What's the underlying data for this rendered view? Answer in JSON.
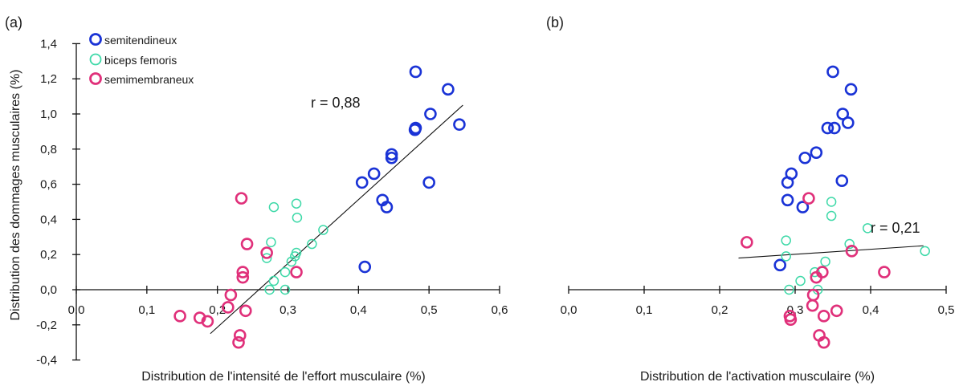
{
  "colors": {
    "semitendineux": "#1a33d6",
    "biceps_femoris": "#3ed9a8",
    "semimembraneux": "#e0307a",
    "axis": "#111111"
  },
  "chart_data": [
    {
      "type": "scatter",
      "panel_label": "(a)",
      "xlabel": "Distribution de l'intensité de l'effort musculaire (%)",
      "ylabel": "Distribution des dommages musculaires (%)",
      "xlim": [
        0,
        0.6
      ],
      "ylim": [
        -0.4,
        1.4
      ],
      "x_ticks": [
        {
          "v": 0.0,
          "label": "0,0"
        },
        {
          "v": 0.1,
          "label": "0,1"
        },
        {
          "v": 0.2,
          "label": "0,2"
        },
        {
          "v": 0.3,
          "label": "0,3"
        },
        {
          "v": 0.4,
          "label": "0,4"
        },
        {
          "v": 0.5,
          "label": "0,5"
        },
        {
          "v": 0.6,
          "label": "0,6"
        }
      ],
      "y_ticks": [
        {
          "v": -0.4,
          "label": "-0,4"
        },
        {
          "v": -0.2,
          "label": "-0,2"
        },
        {
          "v": 0.0,
          "label": "0,0"
        },
        {
          "v": 0.2,
          "label": "0,2"
        },
        {
          "v": 0.4,
          "label": "0,4"
        },
        {
          "v": 0.6,
          "label": "0,6"
        },
        {
          "v": 0.8,
          "label": "0,8"
        },
        {
          "v": 1.0,
          "label": "1,0"
        },
        {
          "v": 1.2,
          "label": "1,2"
        },
        {
          "v": 1.4,
          "label": "1,4"
        }
      ],
      "legend": {
        "position": "top-left",
        "entries": [
          "semitendineux",
          "biceps femoris",
          "semimembraneux"
        ]
      },
      "annotation": "r = 0,88",
      "trendline": {
        "x": [
          0.19,
          0.548
        ],
        "y": [
          -0.25,
          1.05
        ]
      },
      "series": [
        {
          "name": "semitendineux",
          "color_key": "semitendineux",
          "points": [
            [
              0.409,
              0.13
            ],
            [
              0.405,
              0.61
            ],
            [
              0.422,
              0.66
            ],
            [
              0.434,
              0.51
            ],
            [
              0.44,
              0.47
            ],
            [
              0.447,
              0.75
            ],
            [
              0.447,
              0.77
            ],
            [
              0.48,
              0.91
            ],
            [
              0.481,
              0.92
            ],
            [
              0.481,
              1.24
            ],
            [
              0.5,
              0.61
            ],
            [
              0.502,
              1.0
            ],
            [
              0.527,
              1.14
            ],
            [
              0.543,
              0.94
            ]
          ]
        },
        {
          "name": "biceps femoris",
          "color_key": "biceps_femoris",
          "points": [
            [
              0.27,
              0.18
            ],
            [
              0.274,
              0.0
            ],
            [
              0.276,
              0.27
            ],
            [
              0.28,
              0.05
            ],
            [
              0.28,
              0.47
            ],
            [
              0.296,
              0.0
            ],
            [
              0.296,
              0.1
            ],
            [
              0.305,
              0.16
            ],
            [
              0.31,
              0.19
            ],
            [
              0.312,
              0.21
            ],
            [
              0.312,
              0.49
            ],
            [
              0.313,
              0.41
            ],
            [
              0.334,
              0.26
            ],
            [
              0.35,
              0.34
            ]
          ]
        },
        {
          "name": "semimembraneux",
          "color_key": "semimembraneux",
          "points": [
            [
              0.147,
              -0.15
            ],
            [
              0.175,
              -0.16
            ],
            [
              0.186,
              -0.18
            ],
            [
              0.215,
              -0.1
            ],
            [
              0.219,
              -0.03
            ],
            [
              0.23,
              -0.3
            ],
            [
              0.232,
              -0.26
            ],
            [
              0.234,
              0.52
            ],
            [
              0.236,
              0.07
            ],
            [
              0.236,
              0.1
            ],
            [
              0.24,
              -0.12
            ],
            [
              0.242,
              0.26
            ],
            [
              0.27,
              0.21
            ],
            [
              0.312,
              0.1
            ]
          ]
        }
      ]
    },
    {
      "type": "scatter",
      "panel_label": "(b)",
      "xlabel": "Distribution de l'activation musculaire (%)",
      "ylabel": "",
      "xlim": [
        0,
        0.5
      ],
      "ylim": [
        -0.4,
        1.4
      ],
      "x_ticks": [
        {
          "v": 0.0,
          "label": "0,0"
        },
        {
          "v": 0.1,
          "label": "0,1"
        },
        {
          "v": 0.2,
          "label": "0,2"
        },
        {
          "v": 0.3,
          "label": "0,3"
        },
        {
          "v": 0.4,
          "label": "0,4"
        },
        {
          "v": 0.5,
          "label": "0,5"
        }
      ],
      "y_ticks": [],
      "annotation": "r = 0,21",
      "trendline": {
        "x": [
          0.225,
          0.47
        ],
        "y": [
          0.18,
          0.25
        ]
      },
      "series": [
        {
          "name": "semitendineux",
          "color_key": "semitendineux",
          "points": [
            [
              0.28,
              0.14
            ],
            [
              0.29,
              0.51
            ],
            [
              0.29,
              0.61
            ],
            [
              0.295,
              0.66
            ],
            [
              0.31,
              0.47
            ],
            [
              0.313,
              0.75
            ],
            [
              0.328,
              0.78
            ],
            [
              0.343,
              0.92
            ],
            [
              0.35,
              1.24
            ],
            [
              0.352,
              0.92
            ],
            [
              0.362,
              0.62
            ],
            [
              0.363,
              1.0
            ],
            [
              0.37,
              0.95
            ],
            [
              0.374,
              1.14
            ]
          ]
        },
        {
          "name": "biceps femoris",
          "color_key": "biceps_femoris",
          "points": [
            [
              0.288,
              0.28
            ],
            [
              0.288,
              0.19
            ],
            [
              0.292,
              0.0
            ],
            [
              0.307,
              0.05
            ],
            [
              0.326,
              0.1
            ],
            [
              0.33,
              0.0
            ],
            [
              0.34,
              0.16
            ],
            [
              0.348,
              0.5
            ],
            [
              0.348,
              0.42
            ],
            [
              0.372,
              0.26
            ],
            [
              0.396,
              0.35
            ],
            [
              0.472,
              0.22
            ]
          ]
        },
        {
          "name": "semimembraneux",
          "color_key": "semimembraneux",
          "points": [
            [
              0.236,
              0.27
            ],
            [
              0.293,
              -0.15
            ],
            [
              0.294,
              -0.17
            ],
            [
              0.318,
              0.52
            ],
            [
              0.323,
              -0.09
            ],
            [
              0.324,
              -0.03
            ],
            [
              0.328,
              0.07
            ],
            [
              0.332,
              -0.26
            ],
            [
              0.336,
              0.1
            ],
            [
              0.338,
              -0.3
            ],
            [
              0.338,
              -0.15
            ],
            [
              0.355,
              -0.12
            ],
            [
              0.375,
              0.22
            ],
            [
              0.418,
              0.1
            ]
          ]
        }
      ]
    }
  ]
}
